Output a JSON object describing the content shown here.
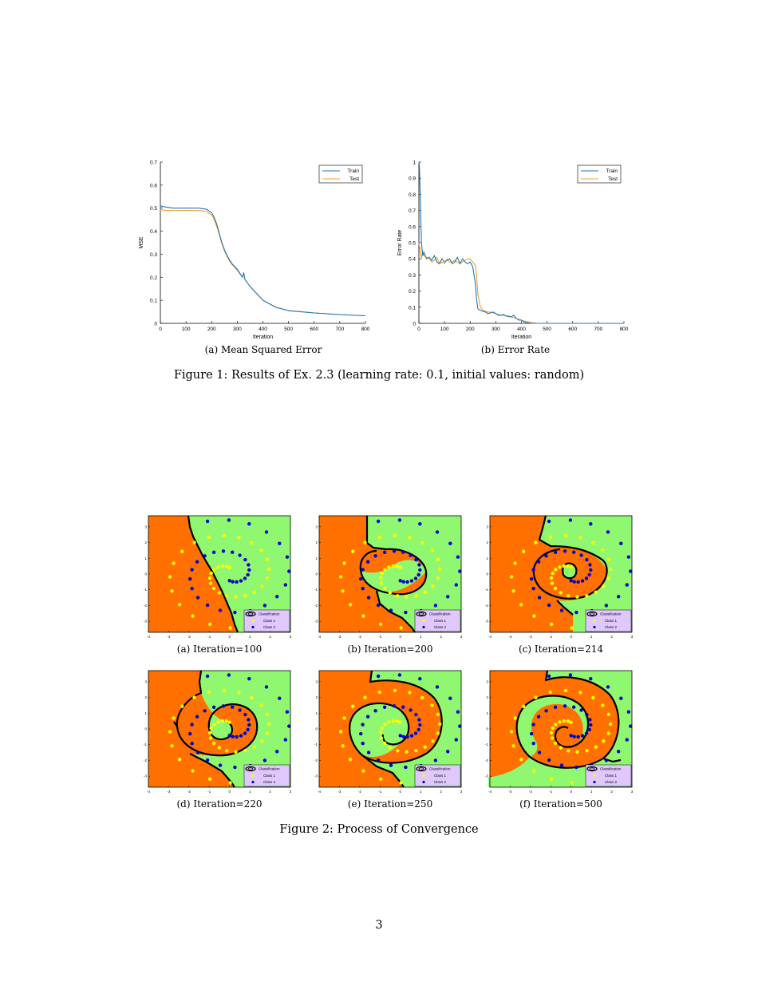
{
  "figure1": {
    "caption": "Figure 1: Results of Ex. 2.3 (learning rate: 0.1, initial values: random)",
    "panels": [
      {
        "caption": "(a) Mean Squared Error"
      },
      {
        "caption": "(b) Error Rate"
      }
    ]
  },
  "figure2": {
    "caption": "Figure 2: Process of Convergence",
    "legend": {
      "title": "Classification",
      "class1": "Class 1",
      "class2": "Class 2"
    },
    "panels": [
      {
        "caption": "(a) Iteration=100"
      },
      {
        "caption": "(b) Iteration=200"
      },
      {
        "caption": "(c) Iteration=214"
      },
      {
        "caption": "(d) Iteration=220"
      },
      {
        "caption": "(e) Iteration=250"
      },
      {
        "caption": "(f) Iteration=500"
      }
    ]
  },
  "page_number": "3",
  "colors": {
    "train": "#1f77b4",
    "test": "#f0a030",
    "region1": "#ff7000",
    "region2": "#90f870",
    "class1": "#ffff00",
    "class2": "#0000cc",
    "legend_bg": "#e0c8ff"
  },
  "chart_data": [
    {
      "type": "line",
      "title": "",
      "xlabel": "Iteration",
      "ylabel": "MSE",
      "xlim": [
        0,
        800
      ],
      "ylim": [
        0,
        0.7
      ],
      "xticks": [
        "0",
        "100",
        "200",
        "300",
        "400",
        "500",
        "600",
        "700",
        "800"
      ],
      "yticks": [
        "0",
        "0.1",
        "0.2",
        "0.3",
        "0.4",
        "0.5",
        "0.6",
        "0.7"
      ],
      "legend": [
        "Train",
        "Test"
      ],
      "legend_position": "top-right",
      "x": [
        0,
        20,
        50,
        100,
        150,
        180,
        200,
        210,
        220,
        230,
        240,
        250,
        260,
        270,
        280,
        300,
        320,
        325,
        330,
        350,
        400,
        450,
        500,
        600,
        700,
        800
      ],
      "series": [
        {
          "name": "Train",
          "values": [
            0.51,
            0.505,
            0.5,
            0.5,
            0.5,
            0.495,
            0.48,
            0.46,
            0.43,
            0.39,
            0.35,
            0.32,
            0.295,
            0.275,
            0.258,
            0.235,
            0.2,
            0.22,
            0.19,
            0.16,
            0.1,
            0.07,
            0.055,
            0.045,
            0.038,
            0.033
          ]
        },
        {
          "name": "Test",
          "values": [
            0.495,
            0.49,
            0.49,
            0.49,
            0.49,
            0.485,
            0.47,
            0.45,
            0.42,
            0.385,
            0.345,
            0.315,
            0.29,
            0.27,
            0.255,
            0.23,
            0.2,
            0.22,
            0.19,
            0.16,
            0.1,
            0.07,
            0.055,
            0.045,
            0.038,
            0.033
          ]
        }
      ]
    },
    {
      "type": "line",
      "title": "",
      "xlabel": "Iteration",
      "ylabel": "Error Rate",
      "xlim": [
        0,
        800
      ],
      "ylim": [
        0,
        1
      ],
      "xticks": [
        "0",
        "100",
        "200",
        "300",
        "400",
        "500",
        "600",
        "700",
        "800"
      ],
      "yticks": [
        "0",
        "0.1",
        "0.2",
        "0.3",
        "0.4",
        "0.5",
        "0.6",
        "0.7",
        "0.8",
        "0.9",
        "1"
      ],
      "legend": [
        "Train",
        "Test"
      ],
      "legend_position": "top-right",
      "x": [
        0,
        2,
        5,
        10,
        15,
        20,
        30,
        40,
        50,
        60,
        70,
        80,
        90,
        100,
        110,
        120,
        130,
        140,
        150,
        160,
        170,
        180,
        190,
        200,
        210,
        220,
        225,
        230,
        240,
        250,
        260,
        270,
        280,
        290,
        300,
        310,
        320,
        330,
        340,
        350,
        360,
        370,
        380,
        390,
        400,
        410,
        420,
        440,
        460,
        500,
        600,
        700,
        800
      ],
      "series": [
        {
          "name": "Train",
          "values": [
            1.0,
            0.98,
            0.8,
            0.5,
            0.42,
            0.44,
            0.4,
            0.41,
            0.39,
            0.42,
            0.38,
            0.37,
            0.4,
            0.38,
            0.39,
            0.4,
            0.37,
            0.38,
            0.41,
            0.37,
            0.4,
            0.38,
            0.37,
            0.38,
            0.35,
            0.25,
            0.15,
            0.09,
            0.08,
            0.075,
            0.07,
            0.06,
            0.065,
            0.07,
            0.06,
            0.05,
            0.05,
            0.055,
            0.045,
            0.045,
            0.04,
            0.05,
            0.03,
            0.02,
            0.02,
            0.01,
            0.005,
            0,
            0,
            0,
            0,
            0,
            0
          ]
        },
        {
          "name": "Test",
          "values": [
            0.5,
            0.48,
            0.46,
            0.4,
            0.45,
            0.42,
            0.41,
            0.4,
            0.38,
            0.39,
            0.41,
            0.37,
            0.38,
            0.37,
            0.4,
            0.38,
            0.38,
            0.39,
            0.38,
            0.37,
            0.38,
            0.39,
            0.4,
            0.4,
            0.38,
            0.36,
            0.3,
            0.18,
            0.1,
            0.08,
            0.075,
            0.07,
            0.07,
            0.065,
            0.06,
            0.055,
            0.05,
            0.05,
            0.045,
            0.04,
            0.04,
            0.035,
            0.03,
            0.025,
            0.02,
            0.015,
            0.01,
            0.005,
            0,
            0,
            0,
            0,
            0
          ]
        }
      ]
    }
  ]
}
